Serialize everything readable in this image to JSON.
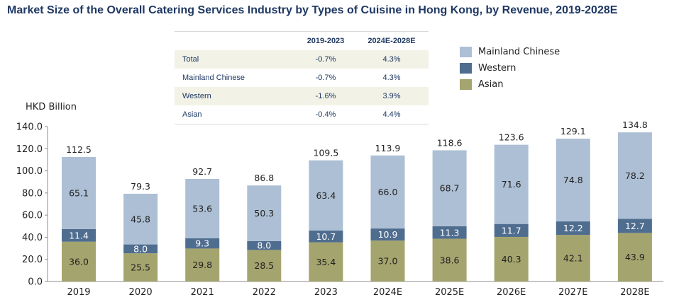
{
  "title": "Market Size of the Overall Catering Services Industry by Types of Cuisine in Hong Kong, by Revenue, 2019-2028E",
  "cagr_table": {
    "headers": [
      "",
      "2019-2023",
      "2024E-2028E"
    ],
    "rows": [
      {
        "label": "Total",
        "v1": "-0.7%",
        "v2": "4.3%"
      },
      {
        "label": "Mainland Chinese",
        "v1": "-0.7%",
        "v2": "4.3%"
      },
      {
        "label": "Western",
        "v1": "-1.6%",
        "v2": "3.9%"
      },
      {
        "label": "Asian",
        "v1": "-0.4%",
        "v2": "4.4%"
      }
    ]
  },
  "chart_data": {
    "type": "bar",
    "stacked": true,
    "title": "Market Size of the Overall Catering Services Industry by Types of Cuisine in Hong Kong, by Revenue, 2019-2028E",
    "ylabel": "HKD Billion",
    "xlabel": "",
    "ylim": [
      0,
      140
    ],
    "yticks": [
      "0.0",
      "20.0",
      "40.0",
      "60.0",
      "80.0",
      "100.0",
      "120.0",
      "140.0"
    ],
    "categories": [
      "2019",
      "2020",
      "2021",
      "2022",
      "2023",
      "2024E",
      "2025E",
      "2026E",
      "2027E",
      "2028E"
    ],
    "series": [
      {
        "name": "Asian",
        "color": "#a4a46e",
        "values": [
          36.0,
          25.5,
          29.8,
          28.5,
          35.4,
          37.0,
          38.6,
          40.3,
          42.1,
          43.9
        ],
        "labels": [
          "36.0",
          "25.5",
          "29.8",
          "28.5",
          "35.4",
          "37.0",
          "38.6",
          "40.3",
          "42.1",
          "43.9"
        ],
        "label_color": "#222222"
      },
      {
        "name": "Western",
        "color": "#4f6d8f",
        "values": [
          11.4,
          8.0,
          9.3,
          8.0,
          10.7,
          10.9,
          11.3,
          11.7,
          12.2,
          12.7
        ],
        "labels": [
          "11.4",
          "8.0",
          "9.3",
          "8.0",
          "10.7",
          "10.9",
          "11.3",
          "11.7",
          "12.2",
          "12.7"
        ],
        "label_color": "#ffffff"
      },
      {
        "name": "Mainland Chinese",
        "color": "#adbfd4",
        "values": [
          65.1,
          45.8,
          53.6,
          50.3,
          63.4,
          66.0,
          68.7,
          71.6,
          74.8,
          78.2
        ],
        "labels": [
          "65.1",
          "45.8",
          "53.6",
          "50.3",
          "63.4",
          "66.0",
          "68.7",
          "71.6",
          "74.8",
          "78.2"
        ],
        "label_color": "#222222"
      }
    ],
    "totals": [
      112.5,
      79.3,
      92.7,
      86.8,
      109.5,
      113.9,
      118.6,
      123.6,
      129.1,
      134.8
    ],
    "total_labels": [
      "112.5",
      "79.3",
      "92.7",
      "86.8",
      "109.5",
      "113.9",
      "118.6",
      "123.6",
      "129.1",
      "134.8"
    ],
    "legend": [
      {
        "name": "Mainland Chinese",
        "color": "#adbfd4"
      },
      {
        "name": "Western",
        "color": "#4f6d8f"
      },
      {
        "name": "Asian",
        "color": "#a4a46e"
      }
    ]
  }
}
